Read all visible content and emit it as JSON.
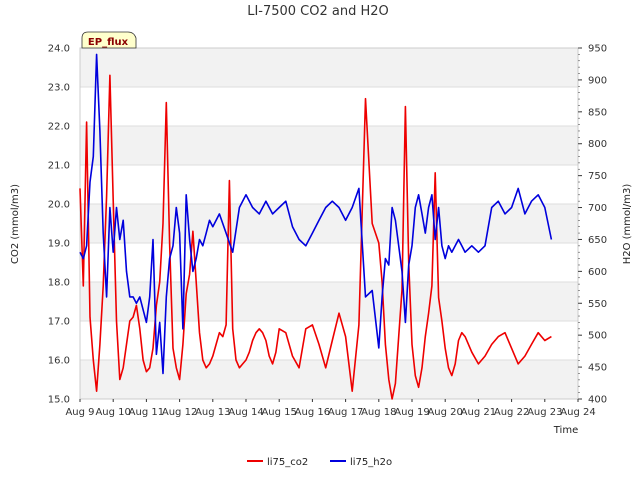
{
  "chart_data": {
    "type": "line",
    "title": "LI-7500 CO2 and H2O",
    "badge": "EP_flux",
    "xlabel": "Time",
    "ylabel": "CO2 (mmol/m3)",
    "ylabel_right": "H2O (mmol/m3)",
    "xlim": [
      9,
      24
    ],
    "ylim": [
      15.0,
      24.0
    ],
    "ylim_right": [
      400,
      950
    ],
    "x_ticks": [
      {
        "value": 9,
        "label": "Aug 9"
      },
      {
        "value": 10,
        "label": "Aug 10"
      },
      {
        "value": 11,
        "label": "Aug 11"
      },
      {
        "value": 12,
        "label": "Aug 12"
      },
      {
        "value": 13,
        "label": "Aug 13"
      },
      {
        "value": 14,
        "label": "Aug 14"
      },
      {
        "value": 15,
        "label": "Aug 15"
      },
      {
        "value": 16,
        "label": "Aug 16"
      },
      {
        "value": 17,
        "label": "Aug 17"
      },
      {
        "value": 18,
        "label": "Aug 18"
      },
      {
        "value": 19,
        "label": "Aug 19"
      },
      {
        "value": 20,
        "label": "Aug 20"
      },
      {
        "value": 21,
        "label": "Aug 21"
      },
      {
        "value": 22,
        "label": "Aug 22"
      },
      {
        "value": 23,
        "label": "Aug 23"
      },
      {
        "value": 24,
        "label": "Aug 24"
      }
    ],
    "y_ticks": [
      "15.0",
      "16.0",
      "17.0",
      "18.0",
      "19.0",
      "20.0",
      "21.0",
      "22.0",
      "23.0",
      "24.0"
    ],
    "y_ticks_right": [
      "400",
      "450",
      "500",
      "550",
      "600",
      "650",
      "700",
      "750",
      "800",
      "850",
      "900",
      "950"
    ],
    "series": [
      {
        "name": "li75_co2",
        "axis": "left",
        "color": "#ee0000",
        "x": [
          9.0,
          9.1,
          9.2,
          9.3,
          9.4,
          9.5,
          9.6,
          9.7,
          9.8,
          9.9,
          10.0,
          10.1,
          10.2,
          10.3,
          10.4,
          10.5,
          10.6,
          10.7,
          10.8,
          10.9,
          11.0,
          11.1,
          11.2,
          11.3,
          11.4,
          11.5,
          11.6,
          11.7,
          11.8,
          11.9,
          12.0,
          12.1,
          12.2,
          12.3,
          12.4,
          12.5,
          12.6,
          12.7,
          12.8,
          12.9,
          13.0,
          13.1,
          13.2,
          13.3,
          13.4,
          13.5,
          13.6,
          13.7,
          13.8,
          13.9,
          14.0,
          14.1,
          14.2,
          14.3,
          14.4,
          14.5,
          14.6,
          14.7,
          14.8,
          14.9,
          15.0,
          15.2,
          15.4,
          15.6,
          15.8,
          16.0,
          16.2,
          16.4,
          16.6,
          16.8,
          17.0,
          17.2,
          17.4,
          17.6,
          17.8,
          18.0,
          18.1,
          18.2,
          18.3,
          18.4,
          18.5,
          18.6,
          18.7,
          18.8,
          18.9,
          19.0,
          19.1,
          19.2,
          19.3,
          19.4,
          19.5,
          19.6,
          19.7,
          19.8,
          19.9,
          20.0,
          20.1,
          20.2,
          20.3,
          20.4,
          20.5,
          20.6,
          20.8,
          21.0,
          21.2,
          21.4,
          21.6,
          21.8,
          22.0,
          22.2,
          22.4,
          22.6,
          22.8,
          23.0,
          23.2
        ],
        "values": [
          20.4,
          17.9,
          22.1,
          17.1,
          16.0,
          15.2,
          16.4,
          17.9,
          20.2,
          23.3,
          20.1,
          17.0,
          15.5,
          15.8,
          16.4,
          17.0,
          17.1,
          17.4,
          16.8,
          16.0,
          15.7,
          15.8,
          16.3,
          17.4,
          18.0,
          19.5,
          22.6,
          19.0,
          16.3,
          15.8,
          15.5,
          16.4,
          17.7,
          18.2,
          19.3,
          18.0,
          16.7,
          16.0,
          15.8,
          15.9,
          16.1,
          16.4,
          16.7,
          16.6,
          16.9,
          20.6,
          16.8,
          16.0,
          15.8,
          15.9,
          16.0,
          16.2,
          16.5,
          16.7,
          16.8,
          16.7,
          16.5,
          16.1,
          15.9,
          16.2,
          16.8,
          16.7,
          16.1,
          15.8,
          16.8,
          16.9,
          16.4,
          15.8,
          16.5,
          17.2,
          16.6,
          15.2,
          16.9,
          22.7,
          19.5,
          19.0,
          18.0,
          16.4,
          15.5,
          15.0,
          15.4,
          16.6,
          17.8,
          22.5,
          18.5,
          16.4,
          15.6,
          15.3,
          15.8,
          16.6,
          17.2,
          17.9,
          20.8,
          17.6,
          17.0,
          16.3,
          15.8,
          15.6,
          15.9,
          16.5,
          16.7,
          16.6,
          16.2,
          15.9,
          16.1,
          16.4,
          16.6,
          16.7,
          16.3,
          15.9,
          16.1,
          16.4,
          16.7,
          16.5,
          16.6
        ]
      },
      {
        "name": "li75_h2o",
        "axis": "right",
        "color": "#0000dd",
        "x": [
          9.0,
          9.1,
          9.2,
          9.3,
          9.4,
          9.5,
          9.6,
          9.7,
          9.8,
          9.9,
          10.0,
          10.1,
          10.2,
          10.3,
          10.4,
          10.5,
          10.6,
          10.7,
          10.8,
          10.9,
          11.0,
          11.1,
          11.2,
          11.3,
          11.4,
          11.5,
          11.6,
          11.7,
          11.8,
          11.9,
          12.0,
          12.1,
          12.2,
          12.3,
          12.4,
          12.5,
          12.6,
          12.7,
          12.8,
          12.9,
          13.0,
          13.2,
          13.4,
          13.6,
          13.8,
          14.0,
          14.2,
          14.4,
          14.6,
          14.8,
          15.0,
          15.2,
          15.4,
          15.6,
          15.8,
          16.0,
          16.2,
          16.4,
          16.6,
          16.8,
          17.0,
          17.2,
          17.4,
          17.6,
          17.8,
          18.0,
          18.1,
          18.2,
          18.3,
          18.4,
          18.5,
          18.6,
          18.7,
          18.8,
          18.9,
          19.0,
          19.1,
          19.2,
          19.3,
          19.4,
          19.5,
          19.6,
          19.7,
          19.8,
          19.9,
          20.0,
          20.1,
          20.2,
          20.3,
          20.4,
          20.5,
          20.6,
          20.8,
          21.0,
          21.2,
          21.4,
          21.6,
          21.8,
          22.0,
          22.2,
          22.4,
          22.6,
          22.8,
          23.0,
          23.2
        ],
        "values": [
          630,
          620,
          640,
          740,
          780,
          940,
          820,
          660,
          560,
          700,
          630,
          700,
          650,
          680,
          600,
          560,
          560,
          550,
          560,
          540,
          520,
          560,
          650,
          470,
          520,
          440,
          560,
          620,
          640,
          700,
          660,
          510,
          720,
          650,
          600,
          620,
          650,
          640,
          660,
          680,
          670,
          690,
          660,
          630,
          700,
          720,
          700,
          690,
          710,
          690,
          700,
          710,
          670,
          650,
          640,
          660,
          680,
          700,
          710,
          700,
          680,
          700,
          730,
          560,
          570,
          480,
          560,
          620,
          610,
          700,
          680,
          640,
          600,
          520,
          610,
          640,
          700,
          720,
          690,
          660,
          700,
          720,
          650,
          700,
          640,
          620,
          640,
          630,
          640,
          650,
          640,
          630,
          640,
          630,
          640,
          700,
          710,
          690,
          700,
          730,
          690,
          710,
          720,
          700,
          650
        ]
      }
    ]
  }
}
